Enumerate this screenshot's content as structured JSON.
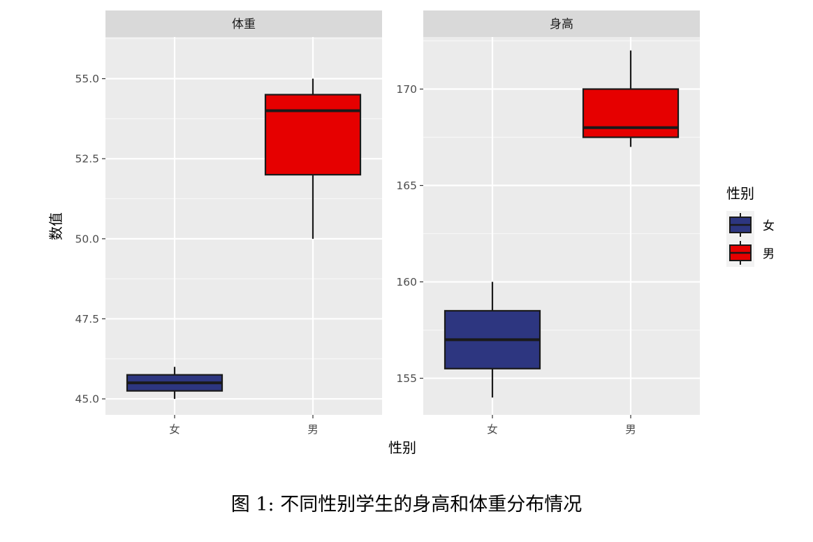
{
  "caption": "图 1: 不同性别学生的身高和体重分布情况",
  "chart_data": {
    "type": "boxplot",
    "xlabel": "性别",
    "ylabel": "数值",
    "categories": [
      "女",
      "男"
    ],
    "legend": {
      "title": "性别",
      "position": "right",
      "entries": [
        {
          "label": "女",
          "color": "#2d3680"
        },
        {
          "label": "男",
          "color": "#e60000"
        }
      ]
    },
    "facets": [
      {
        "title": "体重",
        "ylim": [
          44.5,
          56.3
        ],
        "ticks": [
          45.0,
          47.5,
          50.0,
          52.5,
          55.0
        ],
        "tick_labels": [
          "45.0",
          "47.5",
          "50.0",
          "52.5",
          "55.0"
        ],
        "boxes": [
          {
            "category": "女",
            "min": 45.0,
            "q1": 45.25,
            "median": 45.5,
            "q3": 45.75,
            "max": 46.0
          },
          {
            "category": "男",
            "min": 50.0,
            "q1": 52.0,
            "median": 54.0,
            "q3": 54.5,
            "max": 55.0
          }
        ]
      },
      {
        "title": "身高",
        "ylim": [
          153.1,
          172.7
        ],
        "ticks": [
          155,
          160,
          165,
          170
        ],
        "tick_labels": [
          "155",
          "160",
          "165",
          "170"
        ],
        "boxes": [
          {
            "category": "女",
            "min": 154.0,
            "q1": 155.5,
            "median": 157.0,
            "q3": 158.5,
            "max": 160.0
          },
          {
            "category": "男",
            "min": 167.0,
            "q1": 167.5,
            "median": 168.0,
            "q3": 170.0,
            "max": 172.0
          }
        ]
      }
    ],
    "grid": true
  }
}
